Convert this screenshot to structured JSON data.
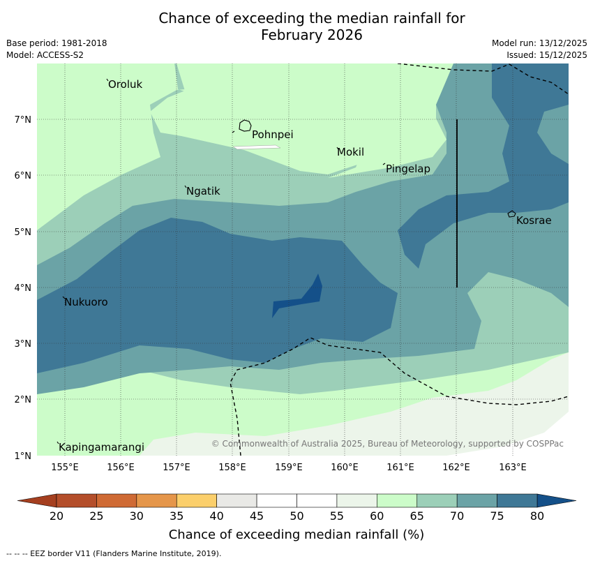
{
  "title_line1": "Chance of exceeding the median rainfall for",
  "title_line2": "February 2026",
  "base_period": "Base period: 1981-2018",
  "model": "Model: ACCESS-S2",
  "model_run": "Model run: 13/12/2025",
  "issued": "Issued: 15/12/2025",
  "lat_ticks": [
    "7°N",
    "6°N",
    "5°N",
    "4°N",
    "3°N",
    "2°N",
    "1°N"
  ],
  "lon_ticks": [
    "155°E",
    "156°E",
    "157°E",
    "158°E",
    "159°E",
    "160°E",
    "161°E",
    "162°E",
    "163°E"
  ],
  "places": [
    "Oroluk",
    "Pohnpei",
    "Mokil",
    "Pingelap",
    "Ngatik",
    "Kosrae",
    "Nukuoro",
    "Kapingamarangi"
  ],
  "copyright": "© Commonwealth of Australia 2025, Bureau of Meteorology, supported by COSPPac",
  "colorbar": {
    "ticks": [
      "20",
      "25",
      "30",
      "35",
      "40",
      "45",
      "50",
      "55",
      "60",
      "65",
      "70",
      "75",
      "80"
    ],
    "colors": [
      "#b44e2a",
      "#cf6a34",
      "#e5964a",
      "#fbcf6b",
      "#e9e9e6",
      "#ffffff",
      "#ffffff",
      "#ecf5ea",
      "#ccfcc9",
      "#9ccfb8",
      "#6ba3a6",
      "#3f7896"
    ],
    "low_color": "#a53f1f",
    "high_color": "#145089",
    "label": "Chance of exceeding median rainfall (%)"
  },
  "footer": "--  --  -- EEZ border V11 (Flanders Marine Institute, 2019)."
}
